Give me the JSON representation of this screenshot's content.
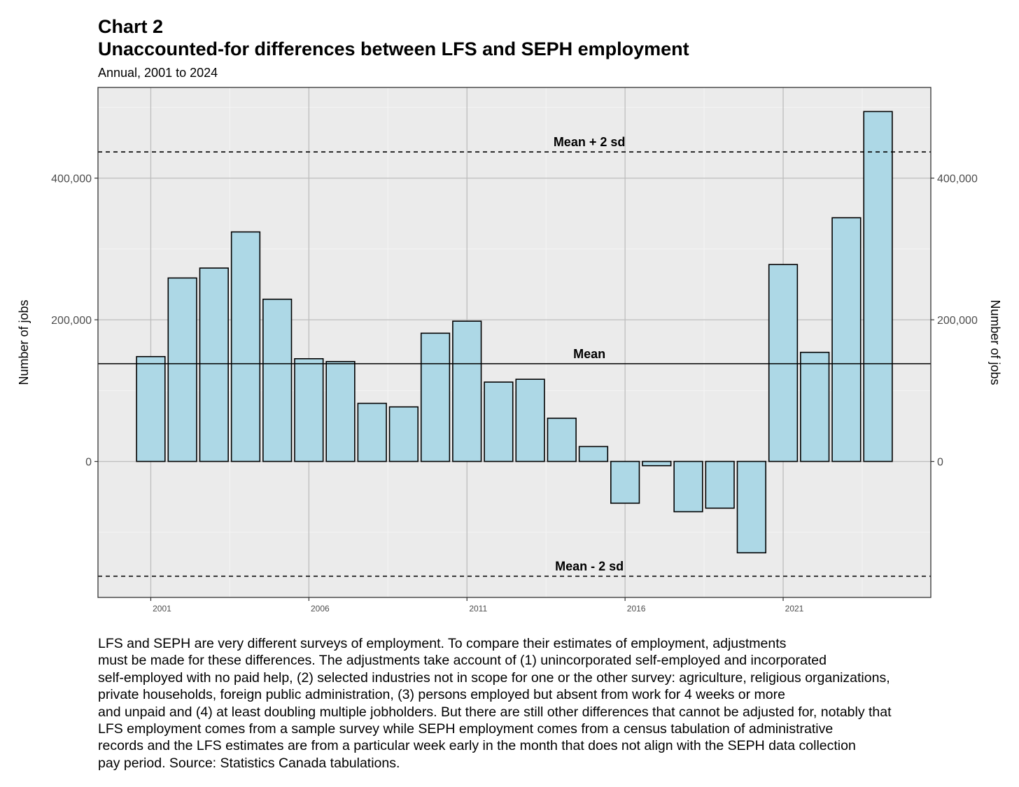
{
  "header": {
    "chart_number": "Chart 2",
    "title": "Unaccounted-for differences between LFS and SEPH employment",
    "subtitle": "Annual, 2001 to 2024"
  },
  "chart_data": {
    "type": "bar",
    "title": "Unaccounted-for differences between LFS and SEPH employment",
    "subtitle": "Annual, 2001 to 2024",
    "ylabel": "Number of jobs",
    "ylabel_right": "Number of jobs",
    "xlabel": "",
    "ylim": [
      -192000,
      528000
    ],
    "xlim": [
      1999.33,
      2025.67
    ],
    "x": [
      2001,
      2002,
      2003,
      2004,
      2005,
      2006,
      2007,
      2008,
      2009,
      2010,
      2011,
      2012,
      2013,
      2014,
      2015,
      2016,
      2017,
      2018,
      2019,
      2020,
      2021,
      2022,
      2023,
      2024
    ],
    "values": [
      148000,
      259000,
      273000,
      324000,
      229000,
      145000,
      141000,
      82000,
      77000,
      181000,
      198000,
      112000,
      116000,
      61000,
      21000,
      -59000,
      -6000,
      -71000,
      -66000,
      -129000,
      278000,
      154000,
      344000,
      494000
    ],
    "x_ticks": [
      2001,
      2006,
      2011,
      2016,
      2021
    ],
    "x_tick_labels": [
      "2001",
      "2006",
      "2011",
      "2016",
      "2021"
    ],
    "y_ticks": [
      0,
      200000,
      400000
    ],
    "y_tick_labels": [
      "0",
      "200,000",
      "400,000"
    ],
    "reference_lines": [
      {
        "label": "Mean + 2 sd",
        "value": 437000,
        "style": "dashed"
      },
      {
        "label": "Mean",
        "value": 138000,
        "style": "solid"
      },
      {
        "label": "Mean - 2 sd",
        "value": -162000,
        "style": "dashed"
      }
    ],
    "bar_color": "#add8e6",
    "bar_edge_color": "#000000",
    "panel_color": "#ebebeb",
    "grid": true,
    "legend": "none"
  },
  "footnote": {
    "lines": [
      "LFS and SEPH are very different surveys of employment. To compare their estimates of employment, adjustments",
      "must be made for these differences. The adjustments take account of (1) unincorporated self-employed and incorporated",
      "self-employed with no paid help, (2) selected industries not in scope for one or the other survey: agriculture, religious organizations,",
      "private households, foreign public administration, (3) persons employed but absent from work for 4 weeks or more",
      "and unpaid and (4) at least doubling multiple jobholders. But there are still other differences that cannot be adjusted for, notably that",
      "LFS employment comes from a sample survey while SEPH employment comes from a census tabulation of administrative",
      "records and the LFS estimates are from a particular week early in the month that does not align with the SEPH data collection",
      "pay period. Source: Statistics Canada tabulations."
    ]
  }
}
